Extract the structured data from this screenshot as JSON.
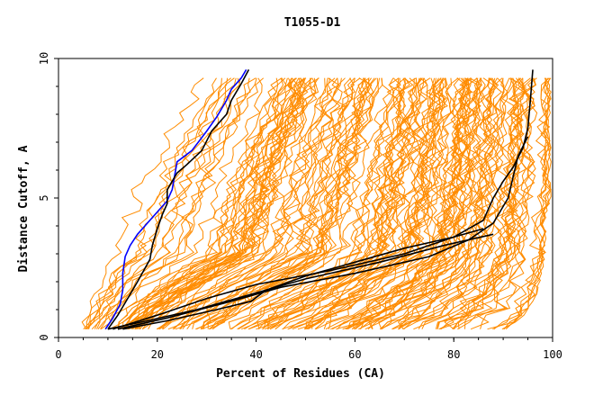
{
  "chart_data": {
    "type": "line",
    "title": "T1055-D1",
    "xlabel": "Percent of Residues (CA)",
    "ylabel": "Distance Cutoff, A",
    "xlim": [
      0,
      100
    ],
    "ylim": [
      0,
      10
    ],
    "x_ticks": [
      "0",
      "20",
      "40",
      "60",
      "80",
      "100"
    ],
    "y_ticks": [
      "0",
      "5",
      "10"
    ],
    "grid": false,
    "legend": "none",
    "colors": {
      "background_models": "#ff8c00",
      "highlight_blue": "#0000ff",
      "highlight_black": "#000000",
      "axes": "#000000"
    },
    "background_envelope": {
      "low_x": [
        5,
        6,
        8,
        10,
        12,
        14,
        17,
        20,
        24,
        28
      ],
      "high_x": [
        90,
        95,
        97,
        98,
        98,
        99,
        99,
        99,
        99,
        99
      ],
      "y": [
        0.3,
        1.0,
        2.0,
        3.0,
        4.0,
        5.0,
        6.0,
        7.0,
        8.0,
        9.5
      ]
    },
    "series": [
      {
        "color": "blue",
        "x": [
          9.5,
          11,
          12.5,
          13,
          13,
          13.5,
          14.5,
          16,
          18,
          20,
          22,
          23,
          24,
          27,
          30,
          32,
          34,
          35,
          37,
          38
        ],
        "y": [
          0.3,
          0.7,
          1.2,
          1.7,
          2.3,
          2.9,
          3.3,
          3.7,
          4.1,
          4.5,
          4.9,
          5.3,
          6.3,
          6.7,
          7.4,
          7.9,
          8.5,
          8.9,
          9.3,
          9.6
        ]
      },
      {
        "color": "black",
        "x": [
          10,
          12,
          14,
          16,
          18.5,
          19,
          20,
          21,
          22,
          22,
          24,
          26,
          29,
          31,
          34,
          35,
          37,
          38.5
        ],
        "y": [
          0.3,
          0.8,
          1.4,
          2.0,
          2.8,
          3.3,
          3.9,
          4.4,
          4.8,
          5.3,
          5.9,
          6.2,
          6.7,
          7.4,
          8.0,
          8.5,
          9.1,
          9.6
        ]
      },
      {
        "color": "black",
        "x": [
          11,
          20,
          30,
          40,
          55,
          70,
          80,
          86,
          88,
          90,
          92,
          94,
          95,
          95.5,
          96
        ],
        "y": [
          0.3,
          0.8,
          1.4,
          1.9,
          2.4,
          3.0,
          3.6,
          4.2,
          5.0,
          5.6,
          6.1,
          6.8,
          7.5,
          8.5,
          9.6
        ]
      },
      {
        "color": "black",
        "x": [
          12,
          22,
          35,
          45,
          60,
          75,
          83,
          88,
          91,
          93,
          95
        ],
        "y": [
          0.3,
          0.7,
          1.3,
          1.8,
          2.3,
          2.9,
          3.5,
          4.1,
          5.0,
          6.5,
          7.2
        ]
      },
      {
        "color": "black",
        "x": [
          10,
          18,
          28,
          38,
          50,
          65,
          78,
          88
        ],
        "y": [
          0.3,
          0.6,
          1.0,
          1.5,
          2.1,
          2.7,
          3.3,
          3.7
        ]
      },
      {
        "color": "black",
        "x": [
          13,
          22,
          32,
          39,
          42,
          50,
          60,
          70,
          80,
          86
        ],
        "y": [
          0.3,
          0.6,
          1.0,
          1.3,
          1.7,
          2.2,
          2.7,
          3.2,
          3.6,
          3.9
        ]
      }
    ]
  }
}
